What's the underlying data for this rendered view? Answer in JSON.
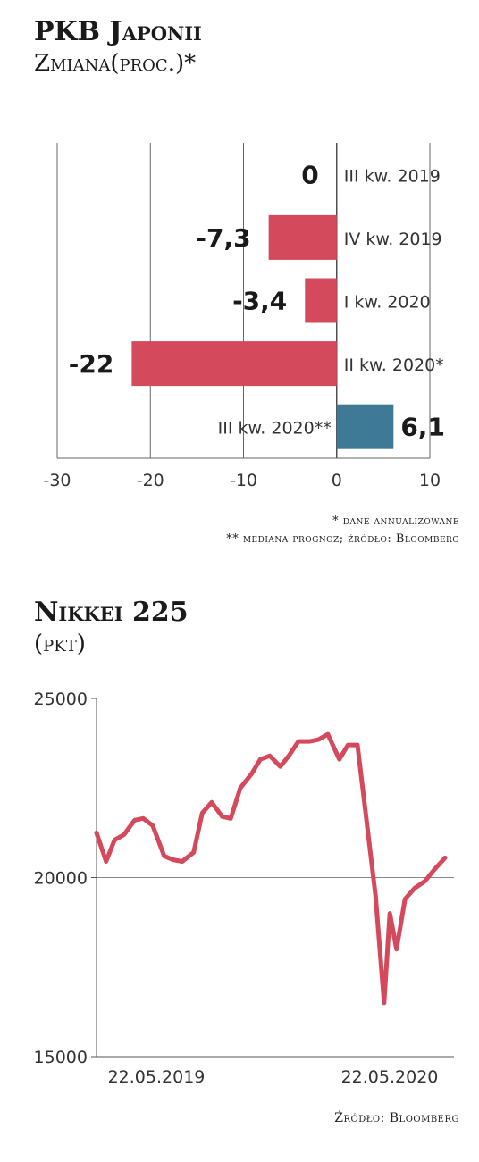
{
  "chart_data": [
    {
      "type": "bar",
      "orientation": "horizontal",
      "title": "PKB Japonii",
      "subtitle": "Zmiana(proc.)*",
      "categories": [
        "III kw. 2019",
        "IV kw. 2019",
        "I kw. 2020",
        "II kw. 2020*",
        "III kw. 2020**"
      ],
      "values": [
        0,
        -7.3,
        -3.4,
        -22,
        6.1
      ],
      "value_labels": [
        "0",
        "-7,3",
        "-3,4",
        "-22",
        "6,1"
      ],
      "colors": [
        "#d44a5c",
        "#d44a5c",
        "#d44a5c",
        "#d44a5c",
        "#3e7a96"
      ],
      "xlim": [
        -30,
        10
      ],
      "xticks": [
        -30,
        -20,
        -10,
        0,
        10
      ],
      "xtick_labels": [
        "-30",
        "-20",
        "-10",
        "0",
        "10"
      ],
      "grid": true,
      "notes": [
        "* dane annualizowane",
        "** mediana prognoz; źródło: Bloomberg"
      ]
    },
    {
      "type": "line",
      "title": "Nikkei 225",
      "subtitle": "(pkt)",
      "x_range": [
        "22.05.2019",
        "22.05.2020"
      ],
      "xtick_labels": [
        "22.05.2019",
        "22.05.2020"
      ],
      "ylim": [
        15000,
        25000
      ],
      "yticks": [
        15000,
        20000,
        25000
      ],
      "ytick_labels": [
        "15000",
        "20000",
        "25000"
      ],
      "grid": "y=20000 only",
      "color": "#d44a5c",
      "source": "Źródło: Bloomberg",
      "series": [
        {
          "x": [
            "2019-05-22",
            "2019-06-01",
            "2019-06-10",
            "2019-06-20",
            "2019-07-01",
            "2019-07-10",
            "2019-07-20",
            "2019-08-01",
            "2019-08-10",
            "2019-08-20",
            "2019-09-01",
            "2019-09-10",
            "2019-09-20",
            "2019-10-01",
            "2019-10-10",
            "2019-10-20",
            "2019-11-01",
            "2019-11-10",
            "2019-11-20",
            "2019-12-01",
            "2019-12-10",
            "2019-12-20",
            "2020-01-01",
            "2020-01-10",
            "2020-01-20",
            "2020-02-01",
            "2020-02-10",
            "2020-02-20",
            "2020-03-01",
            "2020-03-10",
            "2020-03-19",
            "2020-03-25",
            "2020-04-01",
            "2020-04-10",
            "2020-04-20",
            "2020-05-01",
            "2020-05-10",
            "2020-05-22"
          ],
          "values": [
            21250,
            20450,
            21050,
            21200,
            21600,
            21650,
            21450,
            20600,
            20500,
            20450,
            20700,
            21800,
            22100,
            21700,
            21650,
            22500,
            22900,
            23300,
            23400,
            23100,
            23400,
            23800,
            23800,
            23850,
            24000,
            23300,
            23700,
            23700,
            21500,
            19500,
            16500,
            19000,
            18000,
            19400,
            19700,
            19900,
            20200,
            20550
          ]
        }
      ]
    }
  ]
}
